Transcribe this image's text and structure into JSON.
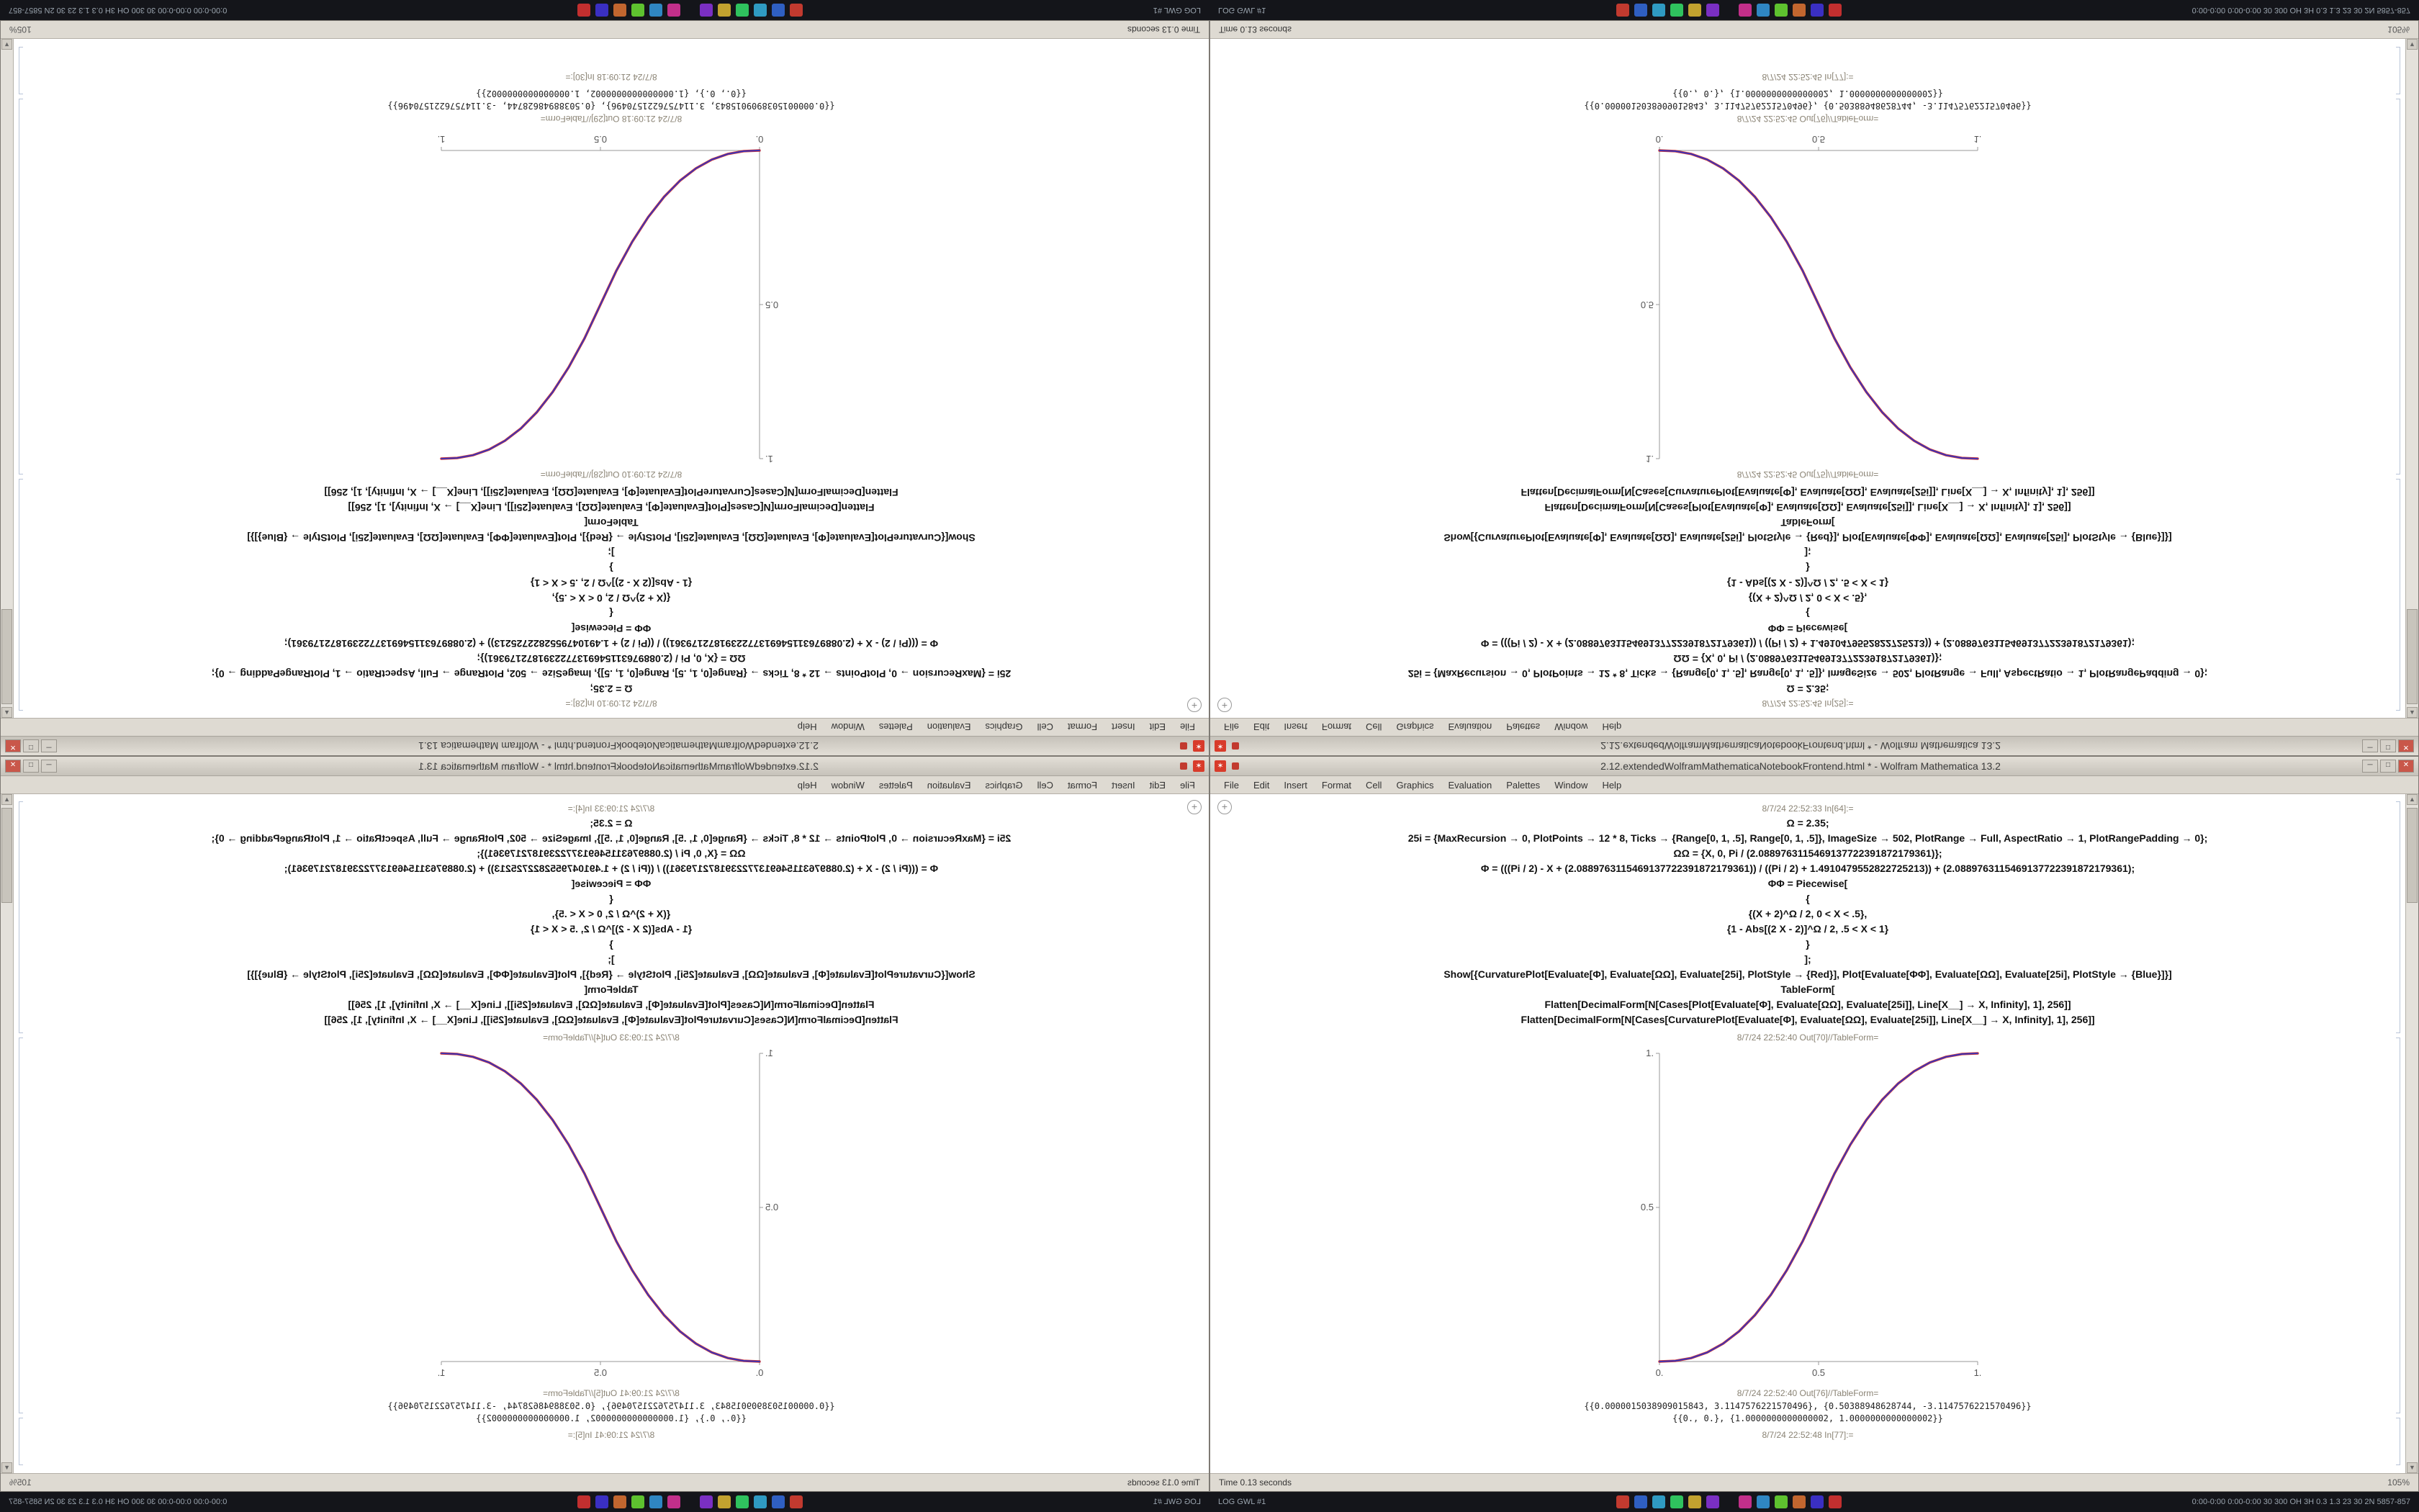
{
  "app": {
    "name": "Wolfram Mathematica"
  },
  "taskbar": {
    "left_text": "LOG GWL #1",
    "right_text": "0:00-0:00  0:00-0:00  30 300 OH 3H  0.3 1.3 23 30 2N  5857-857",
    "icons": [
      {
        "name": "terminal",
        "color": "#c23a2f"
      },
      {
        "name": "files",
        "color": "#2f5fc2"
      },
      {
        "name": "browser",
        "color": "#2f9ac2"
      },
      {
        "name": "editor",
        "color": "#2fc25e"
      },
      {
        "name": "media",
        "color": "#c2a22f"
      },
      {
        "name": "chat",
        "color": "#7a2fc2"
      },
      {
        "name": "mail",
        "color": "#c22f8a"
      },
      {
        "name": "calendar",
        "color": "#2f86c2"
      },
      {
        "name": "music",
        "color": "#5ec22f"
      },
      {
        "name": "paint",
        "color": "#c2662f"
      },
      {
        "name": "code",
        "color": "#3a2fc2"
      },
      {
        "name": "monitor",
        "color": "#c22f2f"
      }
    ]
  },
  "notebook": {
    "menu": [
      "File",
      "Edit",
      "Insert",
      "Format",
      "Cell",
      "Graphics",
      "Evaluation",
      "Palettes",
      "Window",
      "Help"
    ],
    "window_buttons": {
      "minimize": "─",
      "maximize": "□",
      "close": "✕"
    },
    "status_left": "Time 0.13 seconds",
    "status_zoom": "105%",
    "plus_glyph": "+",
    "scroll_up": "▲",
    "scroll_down": "▼",
    "code": [
      "Ω = 2.35;",
      "25i = {MaxRecursion → 0, PlotPoints → 12 * 8, Ticks → {Range[0, 1, .5], Range[0, 1, .5]}, ImageSize → 502, PlotRange → Full, AspectRatio → 1, PlotRangePadding → 0};",
      "ΩΩ = {X, 0, Pi / (2.0889763115469137722391872179361)};",
      "Φ = (((Pi / 2) - X + (2.0889763115469137722391872179361)) / ((Pi / 2) + 1.4910479552822725213)) + (2.0889763115469137722391872179361);",
      "ΦΦ = Piecewise[",
      "{",
      "{(X + 2)^Ω / 2, 0 < X < .5},",
      "{1 - Abs[(2 X - 2)]^Ω / 2, .5 < X < 1}",
      "}",
      "];",
      "Show[{CurvaturePlot[Evaluate[Φ], Evaluate[ΩΩ], Evaluate[25i], PlotStyle → {Red}], Plot[Evaluate[ΦΦ], Evaluate[ΩΩ], Evaluate[25i], PlotStyle → {Blue}]}]",
      "TableForm[",
      "Flatten[DecimalForm[N[Cases[Plot[Evaluate[Φ], Evaluate[ΩΩ], Evaluate[25i]], Line[X__] → X, Infinity], 1], 256]]",
      "Flatten[DecimalForm[N[Cases[CurvaturePlot[Evaluate[Φ], Evaluate[ΩΩ], Evaluate[25i]], Line[X__] → X, Infinity], 1], 256]]"
    ],
    "outputs": [
      "{{0.0000015038909015843, 3.1147576221570496}, {0.50388948628744, -3.1147576221570496}}",
      "{{0., 0.}, {1.0000000000000002, 1.0000000000000002}}"
    ]
  },
  "quadrants": [
    {
      "name": "top-left",
      "orientation": "rotate-180",
      "title": "2.12.extendedWolframMathematicaNotebookFrontend.html * - Wolfram Mathematica 13.1",
      "in_label": "8/7/24 21:09:10 In[28]:=",
      "out_label": "8/7/24 21:09:10 Out[28]//TableForm=",
      "out_label2": "8/7/24 21:09:18 Out[29]//TableForm=",
      "trailing_label": "8/7/24 21:09:18 In[30]:="
    },
    {
      "name": "top-right",
      "orientation": "flip-vertical",
      "title": "2.12.extendedWolframMathematicaNotebookFrontend.html * - Wolfram Mathematica 13.2",
      "in_label": "8/7/24 22:52:45 In[25]:=",
      "out_label": "8/7/24 22:52:45 Out[75]//TableForm=",
      "out_label2": "8/7/24 22:52:45 Out[76]//TableForm=",
      "trailing_label": "8/7/24 22:52:45 In[77]:="
    },
    {
      "name": "bottom-left",
      "orientation": "flip-horizontal",
      "title": "2.12.extendedWolframMathematicaNotebookFrontend.html * - Wolfram Mathematica 13.1",
      "in_label": "8/7/24 21:09:33 In[4]:=",
      "out_label": "8/7/24 21:09:33 Out[4]//TableForm=",
      "out_label2": "8/7/24 21:09:41 Out[5]//TableForm=",
      "trailing_label": "8/7/24 21:09:41 In[5]:="
    },
    {
      "name": "bottom-right",
      "orientation": "normal",
      "title": "2.12.extendedWolframMathematicaNotebookFrontend.html * - Wolfram Mathematica 13.2",
      "in_label": "8/7/24 22:52:33 In[64]:=",
      "out_label": "8/7/24 22:52:40 Out[70]//TableForm=",
      "out_label2": "8/7/24 22:52:40 Out[76]//TableForm=",
      "trailing_label": "8/7/24 22:52:48 In[77]:="
    }
  ],
  "chart_data": {
    "type": "line",
    "title": "",
    "xlabel": "",
    "ylabel": "",
    "xlim": [
      0,
      1
    ],
    "ylim": [
      0,
      1
    ],
    "grid": false,
    "legend": "none",
    "xticks": [
      "0.",
      "0.5",
      "1."
    ],
    "xtick_values": [
      0,
      0.5,
      1
    ],
    "yticks": [
      "0.5",
      "1."
    ],
    "ytick_values": [
      0.5,
      1
    ],
    "x": [
      0,
      0.05,
      0.1,
      0.15,
      0.2,
      0.25,
      0.3,
      0.35,
      0.4,
      0.45,
      0.5,
      0.55,
      0.6,
      0.65,
      0.7,
      0.75,
      0.8,
      0.85,
      0.9,
      0.95,
      1
    ],
    "series": [
      {
        "name": "CurvaturePlot (Red)",
        "color": "#cc2222",
        "values": [
          0,
          0.0022,
          0.0114,
          0.0295,
          0.0581,
          0.098,
          0.1505,
          0.2163,
          0.296,
          0.3903,
          0.5,
          0.6097,
          0.704,
          0.7837,
          0.8495,
          0.902,
          0.9419,
          0.9705,
          0.9886,
          0.9978,
          1
        ]
      },
      {
        "name": "Plot (Blue)",
        "color": "#2233cc",
        "values": [
          0,
          0.0022,
          0.0114,
          0.0295,
          0.0581,
          0.098,
          0.1505,
          0.2163,
          0.296,
          0.3903,
          0.5,
          0.6097,
          0.704,
          0.7837,
          0.8495,
          0.902,
          0.9419,
          0.9705,
          0.9886,
          0.9978,
          1
        ]
      }
    ]
  }
}
